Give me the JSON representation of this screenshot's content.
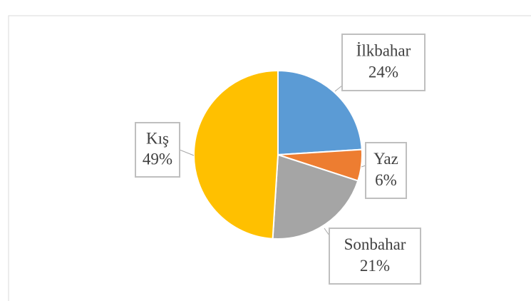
{
  "chart_data": {
    "type": "pie",
    "categories": [
      "İlkbahar",
      "Yaz",
      "Sonbahar",
      "Kış"
    ],
    "values": [
      24,
      6,
      21,
      49
    ],
    "value_labels": [
      "24%",
      "6%",
      "21%",
      "49%"
    ],
    "colors": [
      "#5b9bd5",
      "#ed7d31",
      "#a5a5a5",
      "#ffc000"
    ]
  }
}
